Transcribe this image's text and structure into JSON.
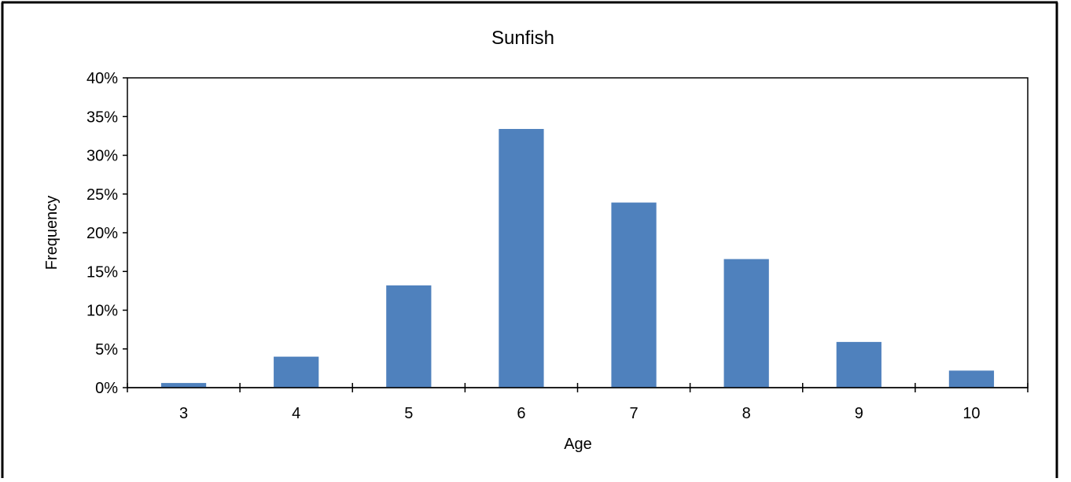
{
  "chart_data": {
    "type": "bar",
    "title": "Sunfish",
    "xlabel": "Age",
    "ylabel": "Frequency",
    "categories": [
      "3",
      "4",
      "5",
      "6",
      "7",
      "8",
      "9",
      "10"
    ],
    "values": [
      0.6,
      4.0,
      13.2,
      33.4,
      23.9,
      16.6,
      5.9,
      2.2
    ],
    "value_format": "percent",
    "ylim": [
      0,
      40
    ],
    "yticks": [
      0,
      5,
      10,
      15,
      20,
      25,
      30,
      35,
      40
    ],
    "ytick_labels": [
      "0%",
      "5%",
      "10%",
      "15%",
      "20%",
      "25%",
      "30%",
      "35%",
      "40%"
    ],
    "grid": false,
    "legend": "none",
    "bar_color": "#4F81BD"
  }
}
